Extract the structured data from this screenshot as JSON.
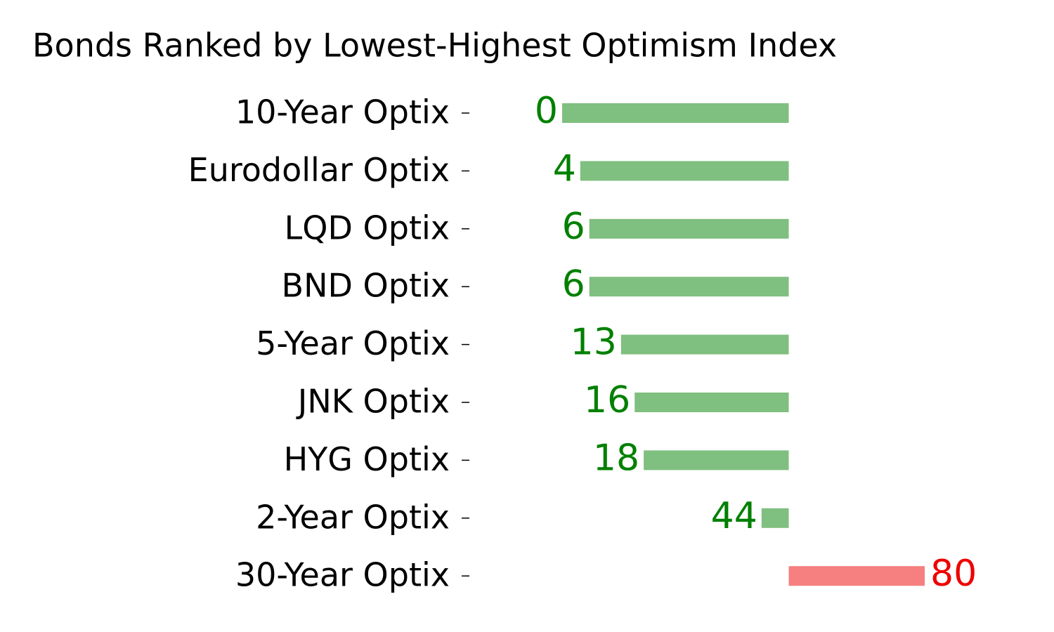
{
  "chart_data": {
    "type": "diverging-bar",
    "title": "Bonds Ranked by Lowest-Highest Optimism Index",
    "categories": [
      "10-Year Optix",
      "Eurodollar Optix",
      "LQD Optix",
      "BND Optix",
      "5-Year Optix",
      "JNK Optix",
      "HYG Optix",
      "2-Year Optix",
      "30-Year Optix"
    ],
    "values": [
      0,
      4,
      6,
      6,
      13,
      16,
      18,
      44,
      80
    ],
    "colors": [
      "#008000",
      "#008000",
      "#008000",
      "#008000",
      "#008000",
      "#008000",
      "#008000",
      "#008000",
      "#ee0000"
    ],
    "xlim": [
      0,
      100
    ]
  }
}
